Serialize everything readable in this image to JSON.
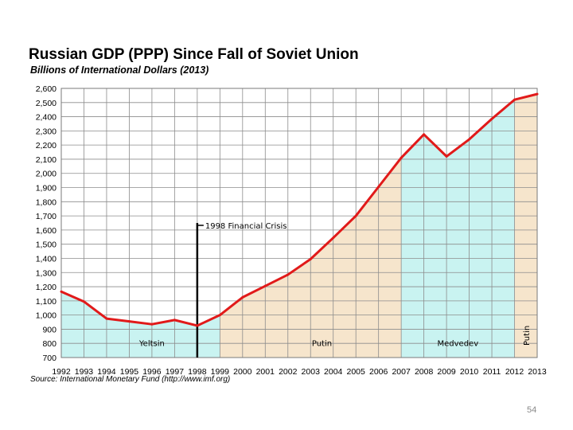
{
  "header": {
    "title": "Russian GDP (PPP) Since Fall of Soviet Union",
    "subtitle": "Billions of International Dollars (2013)"
  },
  "footer": {
    "source": "Source: International Monetary Fund (http://www.imf.org)",
    "page_number": "54"
  },
  "colors": {
    "line": "#e11a1a",
    "yeltsin_fill": "#c9f3f1",
    "putin_fill": "#f6e5cc",
    "medvedev_fill": "#c9f3f1",
    "grid": "#8c8c8c",
    "crisis_line": "#000000"
  },
  "chart_data": {
    "type": "area",
    "title": "Russian GDP (PPP) Since Fall of Soviet Union",
    "subtitle": "Billions of International Dollars (2013)",
    "xlabel": "",
    "ylabel": "",
    "ylim": [
      700,
      2600
    ],
    "ytick_step": 100,
    "ytick_labels": [
      "700",
      "800",
      "900",
      "1,000",
      "1,100",
      "1,200",
      "1,300",
      "1,400",
      "1,500",
      "1,600",
      "1,700",
      "1,800",
      "1,900",
      "2,000",
      "2,100",
      "2,200",
      "2,300",
      "2,400",
      "2,500",
      "2,600"
    ],
    "x": [
      "1992",
      "1993",
      "1994",
      "1995",
      "1996",
      "1997",
      "1998",
      "1999",
      "2000",
      "2001",
      "2002",
      "2003",
      "2004",
      "2005",
      "2006",
      "2007",
      "2008",
      "2009",
      "2010",
      "2011",
      "2012",
      "2013"
    ],
    "values": [
      1165,
      1095,
      975,
      955,
      935,
      965,
      925,
      1000,
      1125,
      1205,
      1285,
      1395,
      1545,
      1700,
      1905,
      2110,
      2275,
      2120,
      2240,
      2385,
      2520,
      2560
    ],
    "grid": true,
    "regions": [
      {
        "name": "yeltsin",
        "label": "Yeltsin",
        "start": "1992",
        "end": "1999",
        "color": "#c9f3f1"
      },
      {
        "name": "putin",
        "label": "Putin",
        "start": "1999",
        "end": "2007",
        "color": "#f6e5cc"
      },
      {
        "name": "medvedev",
        "label": "Medvedev",
        "start": "2007",
        "end": "2012",
        "color": "#c9f3f1"
      },
      {
        "name": "putin-2",
        "label": "Putin",
        "start": "2012",
        "end": "2013",
        "color": "#f6e5cc"
      }
    ],
    "annotations": [
      {
        "text": "1998 Financial Crisis",
        "x": "1998",
        "y_top": 1650
      }
    ]
  }
}
